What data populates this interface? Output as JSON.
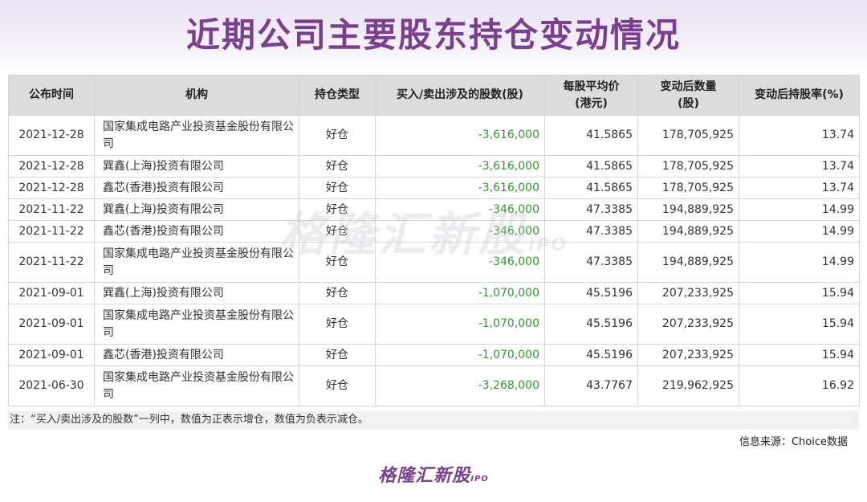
{
  "title": "近期公司主要股东持仓变动情况",
  "table": {
    "headers": [
      "公布时间",
      "机构",
      "持仓类型",
      "买入/卖出涉及的股数(股)",
      "每股平均价\n(港元)",
      "变动后数量\n(股)",
      "变动后持股率(%)"
    ],
    "rows": [
      {
        "date": "2021-12-28",
        "org": "国家集成电路产业投资基金股份有限公司",
        "type": "好仓",
        "shares": "-3,616,000",
        "price": "41.5865",
        "qty": "178,705,925",
        "pct": "13.74"
      },
      {
        "date": "2021-12-28",
        "org": "巽鑫(上海)投资有限公司",
        "type": "好仓",
        "shares": "-3,616,000",
        "price": "41.5865",
        "qty": "178,705,925",
        "pct": "13.74"
      },
      {
        "date": "2021-12-28",
        "org": "鑫芯(香港)投资有限公司",
        "type": "好仓",
        "shares": "-3,616,000",
        "price": "41.5865",
        "qty": "178,705,925",
        "pct": "13.74"
      },
      {
        "date": "2021-11-22",
        "org": "巽鑫(上海)投资有限公司",
        "type": "好仓",
        "shares": "-346,000",
        "price": "47.3385",
        "qty": "194,889,925",
        "pct": "14.99"
      },
      {
        "date": "2021-11-22",
        "org": "鑫芯(香港)投资有限公司",
        "type": "好仓",
        "shares": "-346,000",
        "price": "47.3385",
        "qty": "194,889,925",
        "pct": "14.99"
      },
      {
        "date": "2021-11-22",
        "org": "国家集成电路产业投资基金股份有限公司",
        "type": "好仓",
        "shares": "-346,000",
        "price": "47.3385",
        "qty": "194,889,925",
        "pct": "14.99"
      },
      {
        "date": "2021-09-01",
        "org": "巽鑫(上海)投资有限公司",
        "type": "好仓",
        "shares": "-1,070,000",
        "price": "45.5196",
        "qty": "207,233,925",
        "pct": "15.94"
      },
      {
        "date": "2021-09-01",
        "org": "国家集成电路产业投资基金股份有限公司",
        "type": "好仓",
        "shares": "-1,070,000",
        "price": "45.5196",
        "qty": "207,233,925",
        "pct": "15.94"
      },
      {
        "date": "2021-09-01",
        "org": "鑫芯(香港)投资有限公司",
        "type": "好仓",
        "shares": "-1,070,000",
        "price": "45.5196",
        "qty": "207,233,925",
        "pct": "15.94"
      },
      {
        "date": "2021-06-30",
        "org": "国家集成电路产业投资基金股份有限公司",
        "type": "好仓",
        "shares": "-3,268,000",
        "price": "43.7767",
        "qty": "219,962,925",
        "pct": "16.92"
      }
    ]
  },
  "watermark": {
    "text": "格隆汇新股",
    "suffix": "IPO"
  },
  "note": "注：“买入/卖出涉及的股数”一列中，数值为正表示增仓，数值为负表示减仓。",
  "source": "信息来源：Choice数据",
  "logo": {
    "text": "格隆汇新股",
    "suffix": "IPO"
  },
  "colors": {
    "title": "#7a3f91",
    "negative": "#2e9a2e",
    "header_bg": "#dcdcdc"
  }
}
